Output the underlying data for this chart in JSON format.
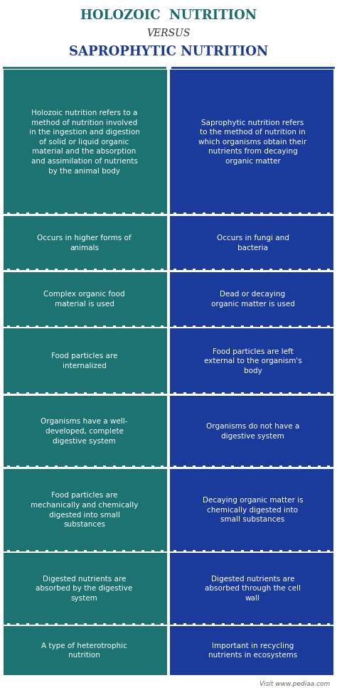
{
  "title1": "HOLOZOIC  NUTRITION",
  "title2": "VERSUS",
  "title3": "SAPROPHYTIC NUTRITION",
  "title1_color": "#1a6b6b",
  "title2_color": "#333333",
  "title3_color": "#1a3a8c",
  "left_color": "#1d7272",
  "right_color": "#1a3a9c",
  "text_color": "#ffffff",
  "dot_color": "#ffffff",
  "bg_color": "#ffffff",
  "footer_text": "Visit www.pediaa.com",
  "rows": [
    {
      "left": "Holozoic nutrition refers to a\nmethod of nutrition involved\nin the ingestion and digestion\nof solid or liquid organic\nmaterial and the absorption\nand assimilation of nutrients\nby the animal body",
      "right": "Saprophytic nutrition refers\nto the method of nutrition in\nwhich organisms obtain their\nnutrients from decaying\norganic matter"
    },
    {
      "left": "Occurs in higher forms of\nanimals",
      "right": "Occurs in fungi and\nbacteria"
    },
    {
      "left": "Complex organic food\nmaterial is used",
      "right": "Dead or decaying\norganic matter is used"
    },
    {
      "left": "Food particles are\ninternalized",
      "right": "Food particles are left\nexternal to the organism's\nbody"
    },
    {
      "left": "Organisms have a well-\ndeveloped, complete\ndigestive system",
      "right": "Organisms do not have a\ndigestive system"
    },
    {
      "left": "Food particles are\nmechanically and chemically\ndigested into small\nsubstances",
      "right": "Decaying organic matter is\nchemically digested into\nsmall substances"
    },
    {
      "left": "Digested nutrients are\nabsorbed by the digestive\nsystem",
      "right": "Digested nutrients are\nabsorbed through the cell\nwall"
    },
    {
      "left": "A type of heterotrophic\nnutrition",
      "right": "Important in recycling\nnutrients in ecosystems"
    }
  ]
}
